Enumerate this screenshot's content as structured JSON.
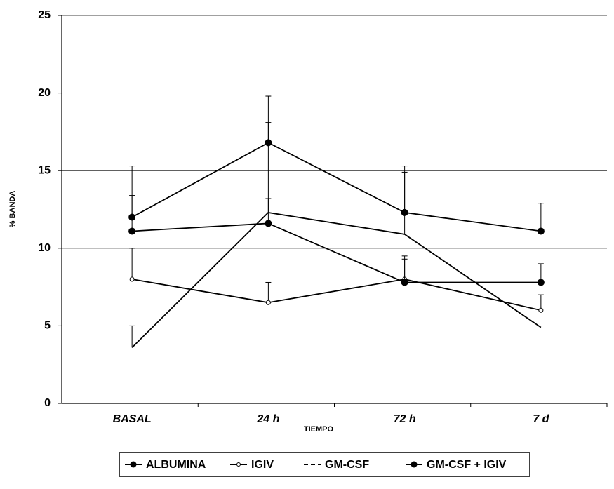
{
  "chart_data": {
    "type": "line",
    "x_label": "TIEMPO",
    "y_label": "% BANDA",
    "categories": [
      "BASAL",
      "24 h",
      "72 h",
      "7 d"
    ],
    "ylim": [
      0,
      25
    ],
    "yticks": [
      0,
      5,
      10,
      15,
      20,
      25
    ],
    "grid": true,
    "legend": "bottom",
    "series": [
      {
        "name": "ALBUMINA",
        "color": "#000000",
        "marker": "circle",
        "values": [
          12.0,
          16.8,
          12.3,
          11.1
        ],
        "errors": [
          3.3,
          3.0,
          3.0,
          1.8
        ]
      },
      {
        "name": "IGIV",
        "color": "#000000",
        "marker": "dot",
        "values": [
          8.0,
          6.5,
          8.0,
          6.0
        ],
        "errors": [
          2.0,
          1.3,
          1.5,
          1.0
        ]
      },
      {
        "name": "GM-CSF",
        "color": "#000000",
        "marker": "none",
        "values": [
          3.6,
          12.3,
          10.9,
          4.9
        ],
        "errors": [
          1.4,
          5.8,
          4.0,
          null
        ]
      },
      {
        "name": "GM-CSF + IGIV",
        "color": "#000000",
        "marker": "circle",
        "values": [
          11.1,
          11.6,
          7.8,
          7.8
        ],
        "errors": [
          2.3,
          1.6,
          1.5,
          1.2
        ]
      }
    ]
  }
}
